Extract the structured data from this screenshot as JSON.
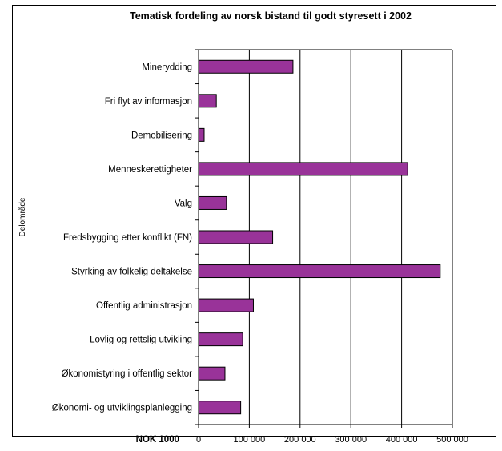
{
  "chart_data": {
    "type": "bar",
    "orientation": "horizontal",
    "title": "Tematisk fordeling av norsk bistand til godt styresett i 2002",
    "xlabel": "NOK 1000",
    "ylabel": "Delområde",
    "xlim": [
      0,
      500000
    ],
    "x_ticks": [
      0,
      100000,
      200000,
      300000,
      400000,
      500000
    ],
    "x_tick_labels": [
      "0",
      "100 000",
      "200 000",
      "300 000",
      "400 000",
      "500 000"
    ],
    "categories": [
      "Minerydding",
      "Fri flyt av informasjon",
      "Demobilisering",
      "Menneskerettigheter",
      "Valg",
      "Fredsbygging etter konflikt (FN)",
      "Styrking av folkelig deltakelse",
      "Offentlig administrasjon",
      "Lovlig og rettslig utvikling",
      "Økonomistyring i offentlig sektor",
      "Økonomi- og utviklingsplanlegging"
    ],
    "values": [
      186000,
      35000,
      11000,
      412000,
      55000,
      146000,
      476000,
      108000,
      87000,
      52000,
      83000
    ],
    "bar_color": "#993399",
    "grid": true,
    "gridlines": "vertical",
    "legend": "none"
  }
}
